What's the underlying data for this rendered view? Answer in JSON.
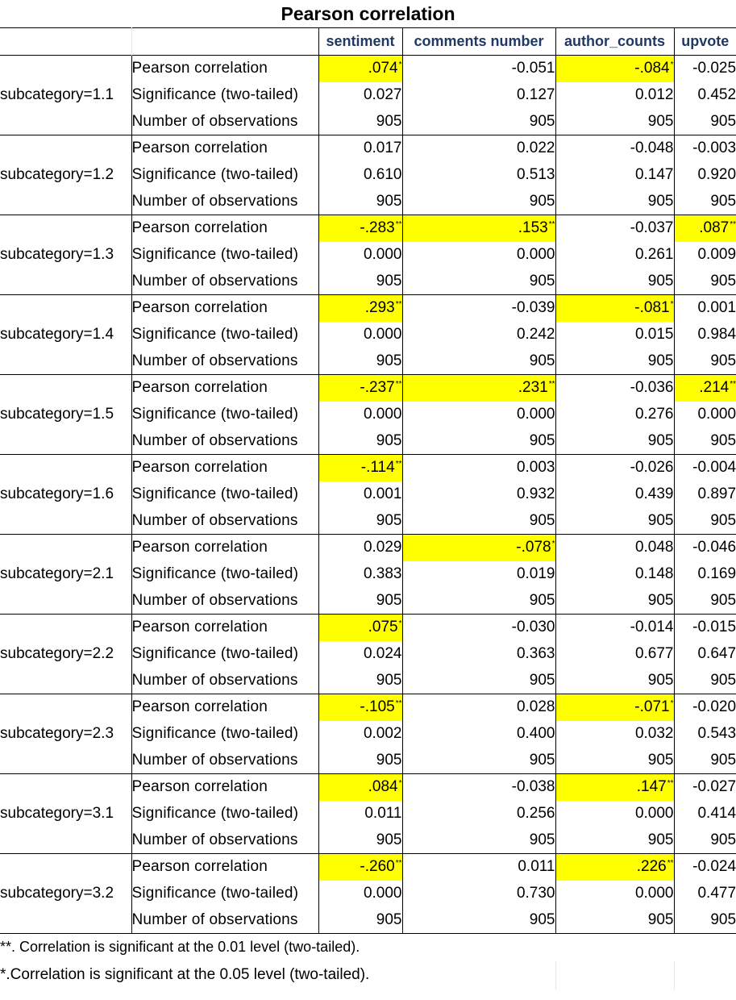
{
  "title": "Pearson correlation",
  "columns": [
    "sentiment",
    "comments number",
    "author_counts",
    "upvote"
  ],
  "groups": [
    {
      "label": "subcategory=1.1",
      "rows": [
        {
          "stat": "Pearson correlation",
          "cells": [
            {
              "v": ".074",
              "s": "*",
              "hl": true
            },
            {
              "v": "-0.051"
            },
            {
              "v": "-.084",
              "s": "*",
              "hl": true
            },
            {
              "v": "-0.025"
            }
          ]
        },
        {
          "stat": "Significance (two-tailed)",
          "cells": [
            {
              "v": "0.027"
            },
            {
              "v": "0.127"
            },
            {
              "v": "0.012"
            },
            {
              "v": "0.452"
            }
          ]
        },
        {
          "stat": "Number of observations",
          "cells": [
            {
              "v": "905"
            },
            {
              "v": "905"
            },
            {
              "v": "905"
            },
            {
              "v": "905"
            }
          ]
        }
      ]
    },
    {
      "label": "subcategory=1.2",
      "rows": [
        {
          "stat": "Pearson correlation",
          "cells": [
            {
              "v": "0.017"
            },
            {
              "v": "0.022"
            },
            {
              "v": "-0.048"
            },
            {
              "v": "-0.003"
            }
          ]
        },
        {
          "stat": "Significance (two-tailed)",
          "cells": [
            {
              "v": "0.610"
            },
            {
              "v": "0.513"
            },
            {
              "v": "0.147"
            },
            {
              "v": "0.920"
            }
          ]
        },
        {
          "stat": "Number of observations",
          "cells": [
            {
              "v": "905"
            },
            {
              "v": "905"
            },
            {
              "v": "905"
            },
            {
              "v": "905"
            }
          ]
        }
      ]
    },
    {
      "label": "subcategory=1.3",
      "rows": [
        {
          "stat": "Pearson correlation",
          "cells": [
            {
              "v": "-.283",
              "s": "**",
              "hl": true
            },
            {
              "v": ".153",
              "s": "**",
              "hl": true
            },
            {
              "v": "-0.037"
            },
            {
              "v": ".087",
              "s": "**",
              "hl": true
            }
          ]
        },
        {
          "stat": "Significance (two-tailed)",
          "cells": [
            {
              "v": "0.000"
            },
            {
              "v": "0.000"
            },
            {
              "v": "0.261"
            },
            {
              "v": "0.009"
            }
          ]
        },
        {
          "stat": "Number of observations",
          "cells": [
            {
              "v": "905"
            },
            {
              "v": "905"
            },
            {
              "v": "905"
            },
            {
              "v": "905"
            }
          ]
        }
      ]
    },
    {
      "label": "subcategory=1.4",
      "rows": [
        {
          "stat": "Pearson correlation",
          "cells": [
            {
              "v": ".293",
              "s": "**",
              "hl": true
            },
            {
              "v": "-0.039"
            },
            {
              "v": "-.081",
              "s": "*",
              "hl": true
            },
            {
              "v": "0.001"
            }
          ]
        },
        {
          "stat": "Significance (two-tailed)",
          "cells": [
            {
              "v": "0.000"
            },
            {
              "v": "0.242"
            },
            {
              "v": "0.015"
            },
            {
              "v": "0.984"
            }
          ]
        },
        {
          "stat": "Number of observations",
          "cells": [
            {
              "v": "905"
            },
            {
              "v": "905"
            },
            {
              "v": "905"
            },
            {
              "v": "905"
            }
          ]
        }
      ]
    },
    {
      "label": "subcategory=1.5",
      "rows": [
        {
          "stat": "Pearson correlation",
          "cells": [
            {
              "v": "-.237",
              "s": "**",
              "hl": true
            },
            {
              "v": ".231",
              "s": "**",
              "hl": true
            },
            {
              "v": "-0.036"
            },
            {
              "v": ".214",
              "s": "**",
              "hl": true
            }
          ]
        },
        {
          "stat": "Significance (two-tailed)",
          "cells": [
            {
              "v": "0.000"
            },
            {
              "v": "0.000"
            },
            {
              "v": "0.276"
            },
            {
              "v": "0.000"
            }
          ]
        },
        {
          "stat": "Number of observations",
          "cells": [
            {
              "v": "905"
            },
            {
              "v": "905"
            },
            {
              "v": "905"
            },
            {
              "v": "905"
            }
          ]
        }
      ]
    },
    {
      "label": "subcategory=1.6",
      "rows": [
        {
          "stat": "Pearson correlation",
          "cells": [
            {
              "v": "-.114",
              "s": "**",
              "hl": true
            },
            {
              "v": "0.003"
            },
            {
              "v": "-0.026"
            },
            {
              "v": "-0.004"
            }
          ]
        },
        {
          "stat": "Significance (two-tailed)",
          "cells": [
            {
              "v": "0.001"
            },
            {
              "v": "0.932"
            },
            {
              "v": "0.439"
            },
            {
              "v": "0.897"
            }
          ]
        },
        {
          "stat": "Number of observations",
          "cells": [
            {
              "v": "905"
            },
            {
              "v": "905"
            },
            {
              "v": "905"
            },
            {
              "v": "905"
            }
          ]
        }
      ]
    },
    {
      "label": "subcategory=2.1",
      "rows": [
        {
          "stat": "Pearson correlation",
          "cells": [
            {
              "v": "0.029"
            },
            {
              "v": "-.078",
              "s": "*",
              "hl": true
            },
            {
              "v": "0.048"
            },
            {
              "v": "-0.046"
            }
          ]
        },
        {
          "stat": "Significance (two-tailed)",
          "cells": [
            {
              "v": "0.383"
            },
            {
              "v": "0.019"
            },
            {
              "v": "0.148"
            },
            {
              "v": "0.169"
            }
          ]
        },
        {
          "stat": "Number of observations",
          "cells": [
            {
              "v": "905"
            },
            {
              "v": "905"
            },
            {
              "v": "905"
            },
            {
              "v": "905"
            }
          ]
        }
      ]
    },
    {
      "label": "subcategory=2.2",
      "rows": [
        {
          "stat": "Pearson correlation",
          "cells": [
            {
              "v": ".075",
              "s": "*",
              "hl": true
            },
            {
              "v": "-0.030"
            },
            {
              "v": "-0.014"
            },
            {
              "v": "-0.015"
            }
          ]
        },
        {
          "stat": "Significance (two-tailed)",
          "cells": [
            {
              "v": "0.024"
            },
            {
              "v": "0.363"
            },
            {
              "v": "0.677"
            },
            {
              "v": "0.647"
            }
          ]
        },
        {
          "stat": "Number of observations",
          "cells": [
            {
              "v": "905"
            },
            {
              "v": "905"
            },
            {
              "v": "905"
            },
            {
              "v": "905"
            }
          ]
        }
      ]
    },
    {
      "label": "subcategory=2.3",
      "rows": [
        {
          "stat": "Pearson correlation",
          "cells": [
            {
              "v": "-.105",
              "s": "**",
              "hl": true
            },
            {
              "v": "0.028"
            },
            {
              "v": "-.071",
              "s": "*",
              "hl": true
            },
            {
              "v": "-0.020"
            }
          ]
        },
        {
          "stat": "Significance (two-tailed)",
          "cells": [
            {
              "v": "0.002"
            },
            {
              "v": "0.400"
            },
            {
              "v": "0.032"
            },
            {
              "v": "0.543"
            }
          ]
        },
        {
          "stat": "Number of observations",
          "cells": [
            {
              "v": "905"
            },
            {
              "v": "905"
            },
            {
              "v": "905"
            },
            {
              "v": "905"
            }
          ]
        }
      ]
    },
    {
      "label": "subcategory=3.1",
      "rows": [
        {
          "stat": "Pearson correlation",
          "cells": [
            {
              "v": ".084",
              "s": "*",
              "hl": true
            },
            {
              "v": "-0.038"
            },
            {
              "v": ".147",
              "s": "**",
              "hl": true
            },
            {
              "v": "-0.027"
            }
          ]
        },
        {
          "stat": "Significance (two-tailed)",
          "cells": [
            {
              "v": "0.011"
            },
            {
              "v": "0.256"
            },
            {
              "v": "0.000"
            },
            {
              "v": "0.414"
            }
          ]
        },
        {
          "stat": "Number of observations",
          "cells": [
            {
              "v": "905"
            },
            {
              "v": "905"
            },
            {
              "v": "905"
            },
            {
              "v": "905"
            }
          ]
        }
      ]
    },
    {
      "label": "subcategory=3.2",
      "rows": [
        {
          "stat": "Pearson correlation",
          "cells": [
            {
              "v": "-.260",
              "s": "**",
              "hl": true
            },
            {
              "v": "0.011"
            },
            {
              "v": ".226",
              "s": "**",
              "hl": true
            },
            {
              "v": "-0.024"
            }
          ]
        },
        {
          "stat": "Significance (two-tailed)",
          "cells": [
            {
              "v": "0.000"
            },
            {
              "v": "0.730"
            },
            {
              "v": "0.000"
            },
            {
              "v": "0.477"
            }
          ]
        },
        {
          "stat": "Number of observations",
          "cells": [
            {
              "v": "905"
            },
            {
              "v": "905"
            },
            {
              "v": "905"
            },
            {
              "v": "905"
            }
          ]
        }
      ]
    }
  ],
  "footnotes": [
    "**. Correlation is significant at the 0.01 level (two-tailed).",
    "*.Correlation is significant at the 0.05 level (two-tailed)."
  ],
  "colors": {
    "highlight": "#ffff00",
    "header_text": "#1f3864",
    "grid": "#000000"
  }
}
